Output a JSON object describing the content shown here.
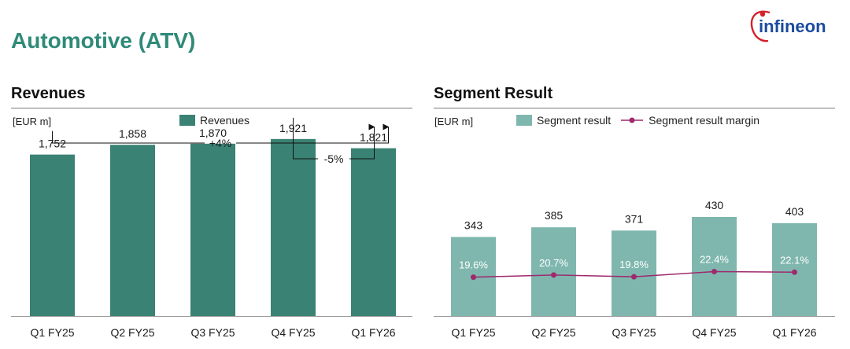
{
  "page": {
    "title": "Automotive (ATV)",
    "logo_text": "infineon"
  },
  "colors": {
    "revenue_bar": "#3a8273",
    "segment_bar": "#7fb7ae",
    "margin_line": "#9e2a6e",
    "title": "#2f8a78",
    "logo": "#1a4b9e",
    "logo_swoosh": "#d5202a"
  },
  "chart_data": [
    {
      "type": "bar",
      "title": "Revenues",
      "ylabel": "[EUR m]",
      "legend": [
        "Revenues"
      ],
      "categories": [
        "Q1 FY25",
        "Q2 FY25",
        "Q3 FY25",
        "Q4 FY25",
        "Q1 FY26"
      ],
      "values": [
        1752,
        1858,
        1870,
        1921,
        1821
      ],
      "value_labels": [
        "1,752",
        "1,858",
        "1,870",
        "1,921",
        "1,821"
      ],
      "ylim": [
        0,
        2150
      ],
      "annotations": [
        {
          "label": "+4%",
          "from": "Q1 FY25",
          "to": "Q1 FY26"
        },
        {
          "label": "-5%",
          "from": "Q4 FY25",
          "to": "Q1 FY26"
        }
      ]
    },
    {
      "type": "bar",
      "title": "Segment Result",
      "ylabel": "[EUR m]",
      "legend": [
        "Segment result",
        "Segment result margin"
      ],
      "categories": [
        "Q1 FY25",
        "Q2 FY25",
        "Q3 FY25",
        "Q4 FY25",
        "Q1 FY26"
      ],
      "values": [
        343,
        385,
        371,
        430,
        403
      ],
      "value_labels": [
        "343",
        "385",
        "371",
        "430",
        "403"
      ],
      "ylim": [
        0,
        860
      ],
      "margin_series": {
        "name": "Segment result margin",
        "values": [
          19.6,
          20.7,
          19.8,
          22.4,
          22.1
        ],
        "labels": [
          "19.6%",
          "20.7%",
          "19.8%",
          "22.4%",
          "22.1%"
        ],
        "ylim": [
          0,
          100
        ]
      }
    }
  ]
}
